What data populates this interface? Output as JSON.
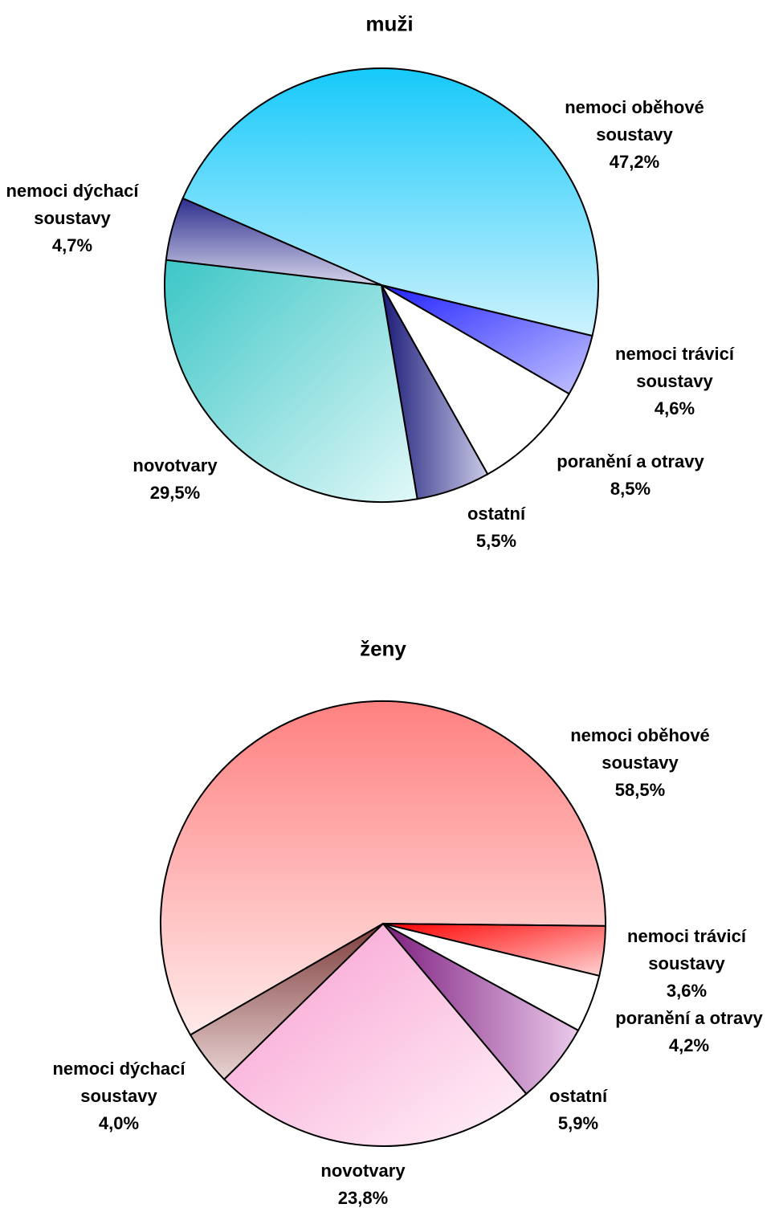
{
  "chart_data": [
    {
      "type": "pie",
      "title": "muži",
      "categories": [
        "nemoci oběhové soustavy",
        "nemoci trávicí soustavy",
        "poranění a otravy",
        "ostatní",
        "novotvary",
        "nemoci dýchací soustavy"
      ],
      "values": [
        47.2,
        4.6,
        8.5,
        5.5,
        29.5,
        4.7
      ],
      "value_labels": [
        "47,2%",
        "4,6%",
        "8,5%",
        "5,5%",
        "29,5%",
        "4,7%"
      ],
      "colors": [
        [
          "#16c9fa",
          "#cdf2fd"
        ],
        [
          "#2222ff",
          "#c4c4ff"
        ],
        [
          "#ffffff",
          "#ffffff"
        ],
        [
          "#1a1a78",
          "#cacae8"
        ],
        [
          "#3cc6c6",
          "#e2f8f8"
        ],
        [
          "#2e2e8e",
          "#d4d4ea"
        ]
      ]
    },
    {
      "type": "pie",
      "title": "ženy",
      "categories": [
        "nemoci oběhové soustavy",
        "nemoci trávicí soustavy",
        "poranění a otravy",
        "ostatní",
        "novotvary",
        "nemoci dýchací soustavy"
      ],
      "values": [
        58.5,
        3.6,
        4.2,
        5.9,
        23.8,
        4.0
      ],
      "value_labels": [
        "58,5%",
        "3,6%",
        "4,2%",
        "5,9%",
        "23,8%",
        "4,0%"
      ],
      "colors": [
        [
          "#ff8080",
          "#ffeaea"
        ],
        [
          "#ff0000",
          "#ffd4d4"
        ],
        [
          "#ffffff",
          "#ffffff"
        ],
        [
          "#7e1e80",
          "#eacaea"
        ],
        [
          "#f89ccf",
          "#fff2f9"
        ],
        [
          "#7e3c3c",
          "#ead4d4"
        ]
      ]
    }
  ]
}
